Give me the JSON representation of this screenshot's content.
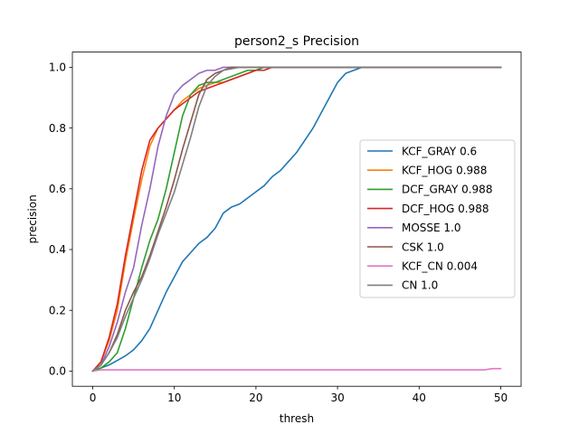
{
  "chart_data": {
    "type": "line",
    "title": "person2_s Precision",
    "xlabel": "thresh",
    "ylabel": "precision",
    "xlim": [
      -2.5,
      52.5
    ],
    "ylim": [
      -0.05,
      1.05
    ],
    "xticks": [
      0,
      10,
      20,
      30,
      40,
      50
    ],
    "yticks": [
      0.0,
      0.2,
      0.4,
      0.6,
      0.8,
      1.0
    ],
    "xtick_labels": [
      "0",
      "10",
      "20",
      "30",
      "40",
      "50"
    ],
    "ytick_labels": [
      "0.0",
      "0.2",
      "0.4",
      "0.6",
      "0.8",
      "1.0"
    ],
    "grid": false,
    "legend_position": "center-right",
    "x": [
      0,
      1,
      2,
      3,
      4,
      5,
      6,
      7,
      8,
      9,
      10,
      11,
      12,
      13,
      14,
      15,
      16,
      17,
      18,
      19,
      20,
      21,
      22,
      23,
      24,
      25,
      26,
      27,
      28,
      29,
      30,
      31,
      32,
      33,
      34,
      35,
      36,
      37,
      38,
      39,
      40,
      41,
      42,
      43,
      44,
      45,
      46,
      47,
      48,
      49,
      50
    ],
    "series": [
      {
        "name": "KCF_GRAY 0.6",
        "color": "#1f77b4",
        "values": [
          0.0,
          0.01,
          0.02,
          0.035,
          0.05,
          0.07,
          0.1,
          0.14,
          0.2,
          0.26,
          0.31,
          0.36,
          0.39,
          0.42,
          0.44,
          0.47,
          0.52,
          0.54,
          0.55,
          0.57,
          0.59,
          0.61,
          0.64,
          0.66,
          0.69,
          0.72,
          0.76,
          0.8,
          0.85,
          0.9,
          0.95,
          0.98,
          0.99,
          1.0,
          1.0,
          1.0,
          1.0,
          1.0,
          1.0,
          1.0,
          1.0,
          1.0,
          1.0,
          1.0,
          1.0,
          1.0,
          1.0,
          1.0,
          1.0,
          1.0,
          1.0
        ]
      },
      {
        "name": "KCF_HOG 0.988",
        "color": "#ff7f0e",
        "values": [
          0.0,
          0.03,
          0.1,
          0.2,
          0.36,
          0.5,
          0.63,
          0.74,
          0.8,
          0.83,
          0.86,
          0.89,
          0.91,
          0.93,
          0.94,
          0.95,
          0.95,
          0.96,
          0.97,
          0.98,
          0.99,
          1.0,
          1.0,
          1.0,
          1.0,
          1.0,
          1.0,
          1.0,
          1.0,
          1.0,
          1.0,
          1.0,
          1.0,
          1.0,
          1.0,
          1.0,
          1.0,
          1.0,
          1.0,
          1.0,
          1.0,
          1.0,
          1.0,
          1.0,
          1.0,
          1.0,
          1.0,
          1.0,
          1.0,
          1.0,
          1.0
        ]
      },
      {
        "name": "DCF_GRAY 0.988",
        "color": "#2ca02c",
        "values": [
          0.0,
          0.01,
          0.03,
          0.06,
          0.14,
          0.24,
          0.34,
          0.43,
          0.5,
          0.6,
          0.72,
          0.84,
          0.91,
          0.94,
          0.95,
          0.95,
          0.96,
          0.97,
          0.98,
          0.99,
          0.99,
          1.0,
          1.0,
          1.0,
          1.0,
          1.0,
          1.0,
          1.0,
          1.0,
          1.0,
          1.0,
          1.0,
          1.0,
          1.0,
          1.0,
          1.0,
          1.0,
          1.0,
          1.0,
          1.0,
          1.0,
          1.0,
          1.0,
          1.0,
          1.0,
          1.0,
          1.0,
          1.0,
          1.0,
          1.0,
          1.0
        ]
      },
      {
        "name": "DCF_HOG 0.988",
        "color": "#d62728",
        "values": [
          0.0,
          0.03,
          0.11,
          0.22,
          0.38,
          0.52,
          0.66,
          0.76,
          0.8,
          0.83,
          0.86,
          0.88,
          0.9,
          0.92,
          0.93,
          0.94,
          0.95,
          0.96,
          0.97,
          0.98,
          0.99,
          0.99,
          1.0,
          1.0,
          1.0,
          1.0,
          1.0,
          1.0,
          1.0,
          1.0,
          1.0,
          1.0,
          1.0,
          1.0,
          1.0,
          1.0,
          1.0,
          1.0,
          1.0,
          1.0,
          1.0,
          1.0,
          1.0,
          1.0,
          1.0,
          1.0,
          1.0,
          1.0,
          1.0,
          1.0,
          1.0
        ]
      },
      {
        "name": "MOSSE 1.0",
        "color": "#9467bd",
        "values": [
          0.0,
          0.02,
          0.08,
          0.16,
          0.26,
          0.34,
          0.48,
          0.6,
          0.74,
          0.84,
          0.91,
          0.94,
          0.96,
          0.98,
          0.99,
          0.99,
          1.0,
          1.0,
          1.0,
          1.0,
          1.0,
          1.0,
          1.0,
          1.0,
          1.0,
          1.0,
          1.0,
          1.0,
          1.0,
          1.0,
          1.0,
          1.0,
          1.0,
          1.0,
          1.0,
          1.0,
          1.0,
          1.0,
          1.0,
          1.0,
          1.0,
          1.0,
          1.0,
          1.0,
          1.0,
          1.0,
          1.0,
          1.0,
          1.0,
          1.0,
          1.0
        ]
      },
      {
        "name": "CSK 1.0",
        "color": "#8c564b",
        "values": [
          0.0,
          0.02,
          0.06,
          0.12,
          0.2,
          0.26,
          0.31,
          0.38,
          0.46,
          0.54,
          0.63,
          0.73,
          0.82,
          0.91,
          0.96,
          0.98,
          0.99,
          1.0,
          1.0,
          1.0,
          1.0,
          1.0,
          1.0,
          1.0,
          1.0,
          1.0,
          1.0,
          1.0,
          1.0,
          1.0,
          1.0,
          1.0,
          1.0,
          1.0,
          1.0,
          1.0,
          1.0,
          1.0,
          1.0,
          1.0,
          1.0,
          1.0,
          1.0,
          1.0,
          1.0,
          1.0,
          1.0,
          1.0,
          1.0,
          1.0,
          1.0
        ]
      },
      {
        "name": "KCF_CN 0.004",
        "color": "#e377c2",
        "values": [
          0.0,
          0.004,
          0.004,
          0.004,
          0.004,
          0.004,
          0.004,
          0.004,
          0.004,
          0.004,
          0.004,
          0.004,
          0.004,
          0.004,
          0.004,
          0.004,
          0.004,
          0.004,
          0.004,
          0.004,
          0.004,
          0.004,
          0.004,
          0.004,
          0.004,
          0.004,
          0.004,
          0.004,
          0.004,
          0.004,
          0.004,
          0.004,
          0.004,
          0.004,
          0.004,
          0.004,
          0.004,
          0.004,
          0.004,
          0.004,
          0.004,
          0.004,
          0.004,
          0.004,
          0.004,
          0.004,
          0.004,
          0.004,
          0.004,
          0.008,
          0.008
        ]
      },
      {
        "name": "CN 1.0",
        "color": "#7f7f7f",
        "values": [
          0.0,
          0.02,
          0.06,
          0.11,
          0.18,
          0.24,
          0.3,
          0.37,
          0.45,
          0.52,
          0.59,
          0.68,
          0.77,
          0.87,
          0.94,
          0.97,
          0.99,
          0.995,
          1.0,
          1.0,
          1.0,
          1.0,
          1.0,
          1.0,
          1.0,
          1.0,
          1.0,
          1.0,
          1.0,
          1.0,
          1.0,
          1.0,
          1.0,
          1.0,
          1.0,
          1.0,
          1.0,
          1.0,
          1.0,
          1.0,
          1.0,
          1.0,
          1.0,
          1.0,
          1.0,
          1.0,
          1.0,
          1.0,
          1.0,
          1.0,
          1.0
        ]
      }
    ]
  }
}
